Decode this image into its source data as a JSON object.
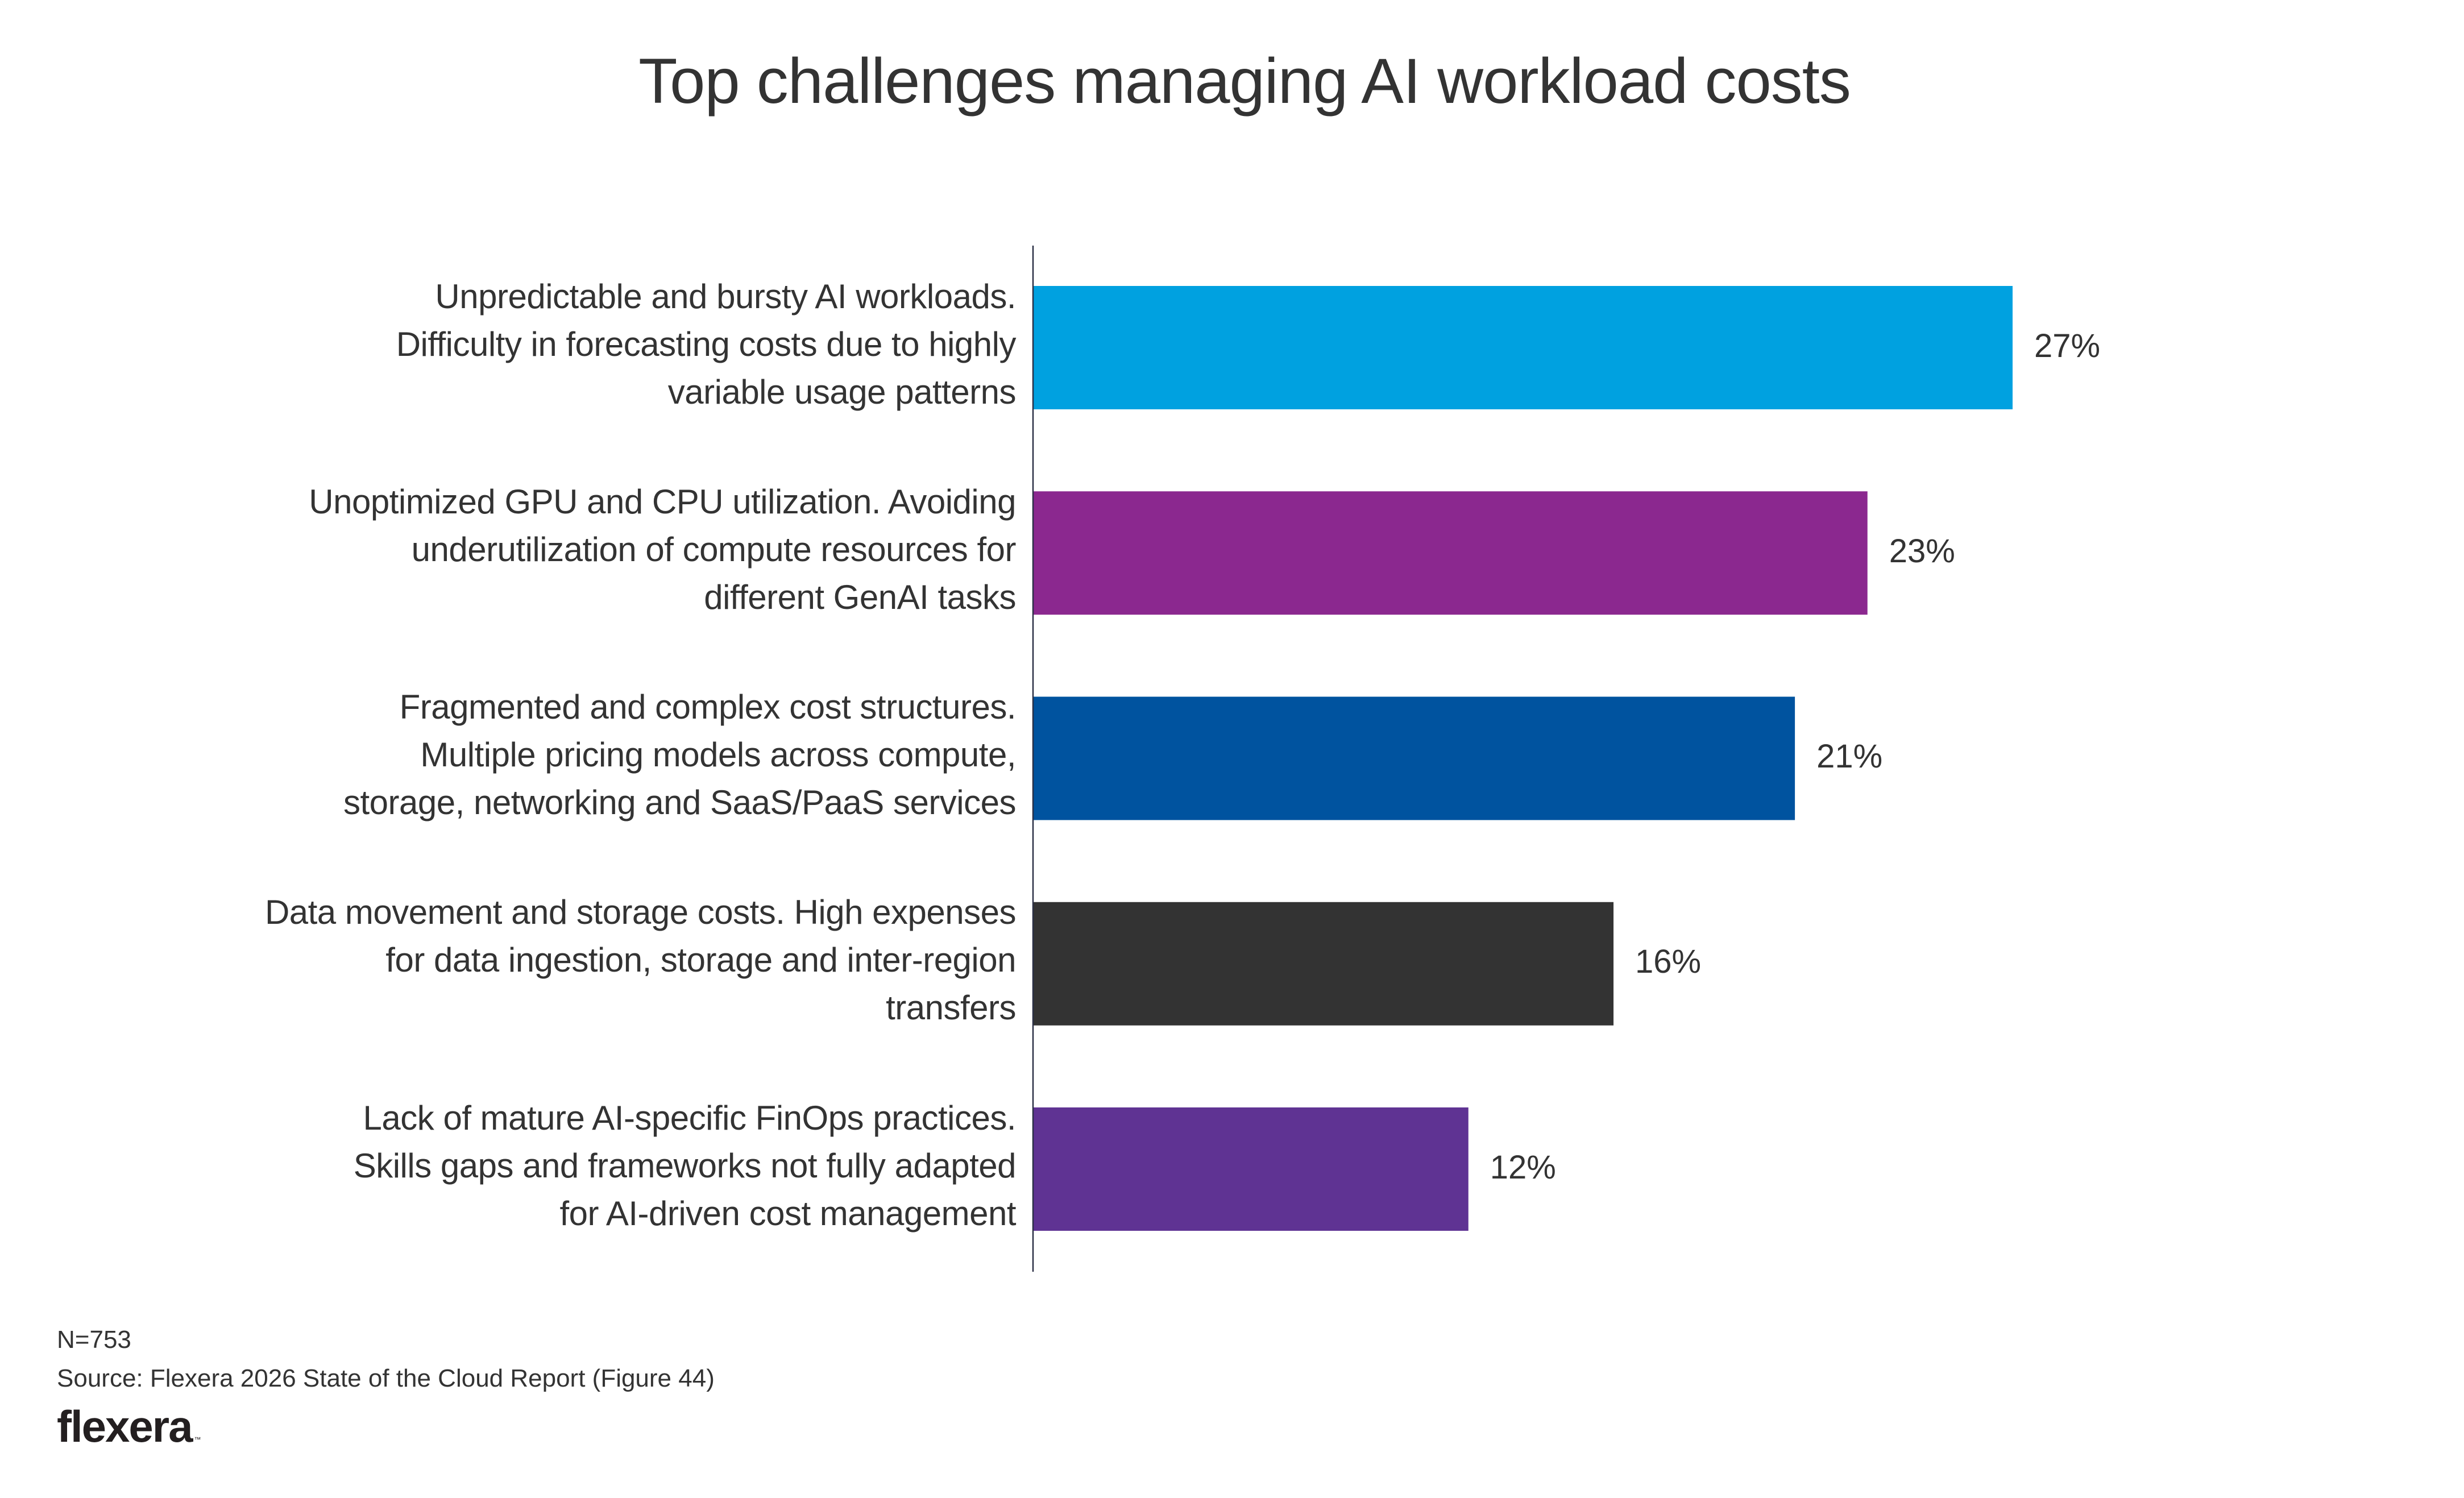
{
  "chart_data": {
    "type": "bar",
    "orientation": "horizontal",
    "title": "Top challenges managing AI workload costs",
    "xlabel": "",
    "ylabel": "",
    "xlim": [
      0,
      27
    ],
    "grid": false,
    "legend": "none",
    "value_suffix": "%",
    "categories": [
      [
        "Unpredictable and bursty AI workloads.",
        "Difficulty in forecasting costs due to highly",
        "variable usage patterns"
      ],
      [
        "Unoptimized GPU and CPU utilization. Avoiding",
        "underutilization of compute resources for",
        "different GenAI tasks"
      ],
      [
        "Fragmented and complex cost structures.",
        "Multiple pricing models across compute,",
        "storage, networking and SaaS/PaaS services"
      ],
      [
        "Data movement and storage costs. High expenses",
        "for data ingestion, storage and inter-region",
        "transfers"
      ],
      [
        "Lack of mature AI-specific FinOps practices.",
        "Skills gaps and frameworks not fully adapted",
        "for AI-driven cost management"
      ]
    ],
    "values": [
      27,
      23,
      21,
      16,
      12
    ],
    "value_labels": [
      "27%",
      "23%",
      "21%",
      "16%",
      "12%"
    ],
    "colors": [
      "#00A1E0",
      "#8B288F",
      "#00539F",
      "#333333",
      "#5F3393"
    ],
    "axis_color": "#2B3046"
  },
  "footer": {
    "sample_size": "N=753",
    "source": "Source: Flexera 2026 State of the Cloud Report (Figure 44)",
    "logo_text": "flexera",
    "logo_tm": "™"
  }
}
